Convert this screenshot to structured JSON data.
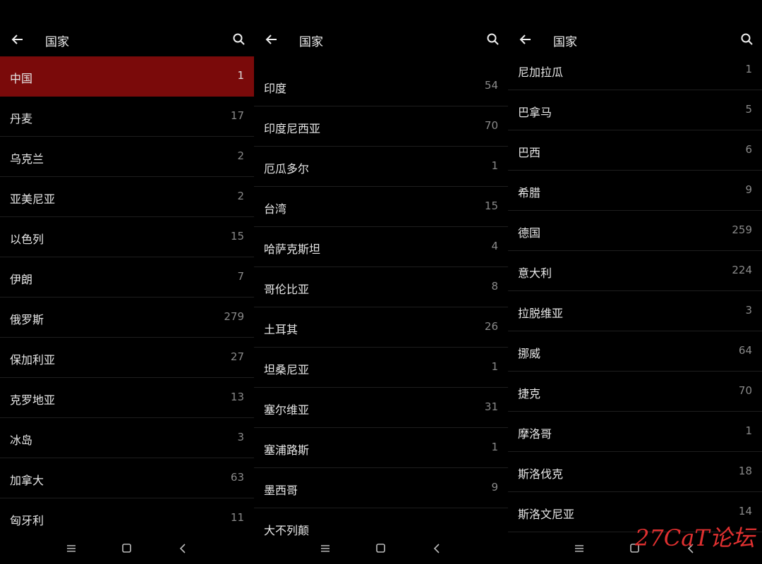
{
  "panels": [
    {
      "title": "国家",
      "offset": 80,
      "highlight": 0,
      "rows": [
        {
          "name": "中国",
          "count": 1
        },
        {
          "name": "丹麦",
          "count": 17
        },
        {
          "name": "乌克兰",
          "count": 2
        },
        {
          "name": "亚美尼亚",
          "count": 2
        },
        {
          "name": "以色列",
          "count": 15
        },
        {
          "name": "伊朗",
          "count": 7
        },
        {
          "name": "俄罗斯",
          "count": 279
        },
        {
          "name": "保加利亚",
          "count": 27
        },
        {
          "name": "克罗地亚",
          "count": 13
        },
        {
          "name": "冰岛",
          "count": 3
        },
        {
          "name": "加拿大",
          "count": 63
        },
        {
          "name": "匈牙利",
          "count": 11
        }
      ]
    },
    {
      "title": "国家",
      "offset": 94,
      "rows": [
        {
          "name": "印度",
          "count": 54
        },
        {
          "name": "印度尼西亚",
          "count": 70
        },
        {
          "name": "厄瓜多尔",
          "count": 1
        },
        {
          "name": "台湾",
          "count": 15
        },
        {
          "name": "哈萨克斯坦",
          "count": 4
        },
        {
          "name": "哥伦比亚",
          "count": 8
        },
        {
          "name": "土耳其",
          "count": 26
        },
        {
          "name": "坦桑尼亚",
          "count": 1
        },
        {
          "name": "塞尔维亚",
          "count": 31
        },
        {
          "name": "塞浦路斯",
          "count": 1
        },
        {
          "name": "墨西哥",
          "count": 9
        },
        {
          "name": "大不列颠"
        }
      ]
    },
    {
      "title": "国家",
      "offset": 71,
      "rows": [
        {
          "name": "尼加拉瓜",
          "count": 1
        },
        {
          "name": "巴拿马",
          "count": 5
        },
        {
          "name": "巴西",
          "count": 6
        },
        {
          "name": "希腊",
          "count": 9
        },
        {
          "name": "德国",
          "count": 259
        },
        {
          "name": "意大利",
          "count": 224
        },
        {
          "name": "拉脱维亚",
          "count": 3
        },
        {
          "name": "挪威",
          "count": 64
        },
        {
          "name": "捷克",
          "count": 70
        },
        {
          "name": "摩洛哥",
          "count": 1
        },
        {
          "name": "斯洛伐克",
          "count": 18
        },
        {
          "name": "斯洛文尼亚",
          "count": 14
        }
      ]
    }
  ],
  "watermark": "27CaT论坛"
}
